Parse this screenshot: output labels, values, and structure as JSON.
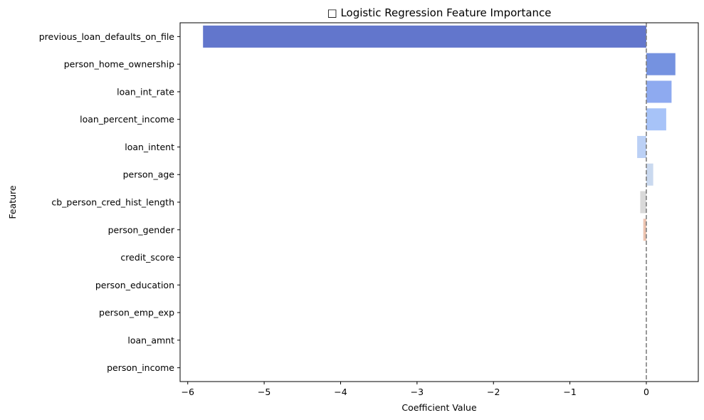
{
  "chart_data": {
    "type": "bar",
    "orientation": "horizontal",
    "title": "□ Logistic Regression Feature Importance",
    "xlabel": "Coefficient Value",
    "ylabel": "Feature",
    "categories": [
      "previous_loan_defaults_on_file",
      "person_home_ownership",
      "loan_int_rate",
      "loan_percent_income",
      "loan_intent",
      "person_age",
      "cb_person_cred_hist_length",
      "person_gender",
      "credit_score",
      "person_education",
      "person_emp_exp",
      "loan_amnt",
      "person_income"
    ],
    "values": [
      -5.8,
      0.38,
      0.33,
      0.26,
      -0.12,
      0.09,
      -0.08,
      -0.04,
      0.0,
      0.0,
      0.0,
      0.0,
      0.0
    ],
    "colors": [
      "#6276cc",
      "#7592e0",
      "#8eaaf0",
      "#a7c3f8",
      "#bbd0f5",
      "#cad9ef",
      "#d9d9d9",
      "#ecc3b0",
      "#f0b89f",
      "#f3a482",
      "#ef8b67",
      "#e4684f",
      "#c43c3c"
    ],
    "xlim": [
      -6.1,
      0.68
    ],
    "xticks": [
      -6,
      -5,
      -4,
      -3,
      -2,
      -1,
      0
    ],
    "xtick_labels": [
      "−6",
      "−5",
      "−4",
      "−3",
      "−2",
      "−1",
      "0"
    ],
    "reference_line": {
      "x": 0,
      "style": "dashed",
      "color": "#808080"
    },
    "grid": false,
    "legend": "none"
  }
}
